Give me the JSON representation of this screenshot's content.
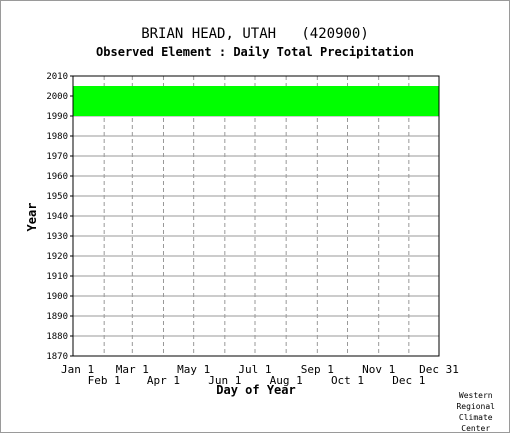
{
  "title": "BRIAN HEAD, UTAH   (420900)",
  "subtitle": "Observed Element : Daily Total Precipitation",
  "credit": [
    "Western",
    "Regional",
    "Climate",
    "Center"
  ],
  "colors": {
    "data": "#00ff00",
    "grid": "#999999",
    "axis": "#000000",
    "background": "#ffffff"
  },
  "chart_data": {
    "type": "heatmap",
    "title": "BRIAN HEAD, UTAH   (420900)",
    "subtitle": "Observed Element : Daily Total Precipitation",
    "xlabel": "Day of Year",
    "ylabel": "Year",
    "xlim": [
      1,
      365
    ],
    "ylim": [
      1870,
      2010
    ],
    "grid": true,
    "x_ticks": [
      {
        "label": "Jan 1",
        "day": 1,
        "row": 1
      },
      {
        "label": "Feb 1",
        "day": 32,
        "row": 2
      },
      {
        "label": "Mar 1",
        "day": 60,
        "row": 1
      },
      {
        "label": "Apr 1",
        "day": 91,
        "row": 2
      },
      {
        "label": "May 1",
        "day": 121,
        "row": 1
      },
      {
        "label": "Jun 1",
        "day": 152,
        "row": 2
      },
      {
        "label": "Jul 1",
        "day": 182,
        "row": 1
      },
      {
        "label": "Aug 1",
        "day": 213,
        "row": 2
      },
      {
        "label": "Sep 1",
        "day": 244,
        "row": 1
      },
      {
        "label": "Oct 1",
        "day": 274,
        "row": 2
      },
      {
        "label": "Nov 1",
        "day": 305,
        "row": 1
      },
      {
        "label": "Dec 1",
        "day": 335,
        "row": 2
      },
      {
        "label": "Dec 31",
        "day": 365,
        "row": 1
      }
    ],
    "y_ticks": [
      1870,
      1880,
      1890,
      1900,
      1910,
      1920,
      1930,
      1940,
      1950,
      1960,
      1970,
      1980,
      1990,
      2000,
      2010
    ],
    "observed_periods": [
      {
        "start_day": 1,
        "end_day": 365,
        "start_year": 1990,
        "end_year": 2005
      }
    ]
  }
}
